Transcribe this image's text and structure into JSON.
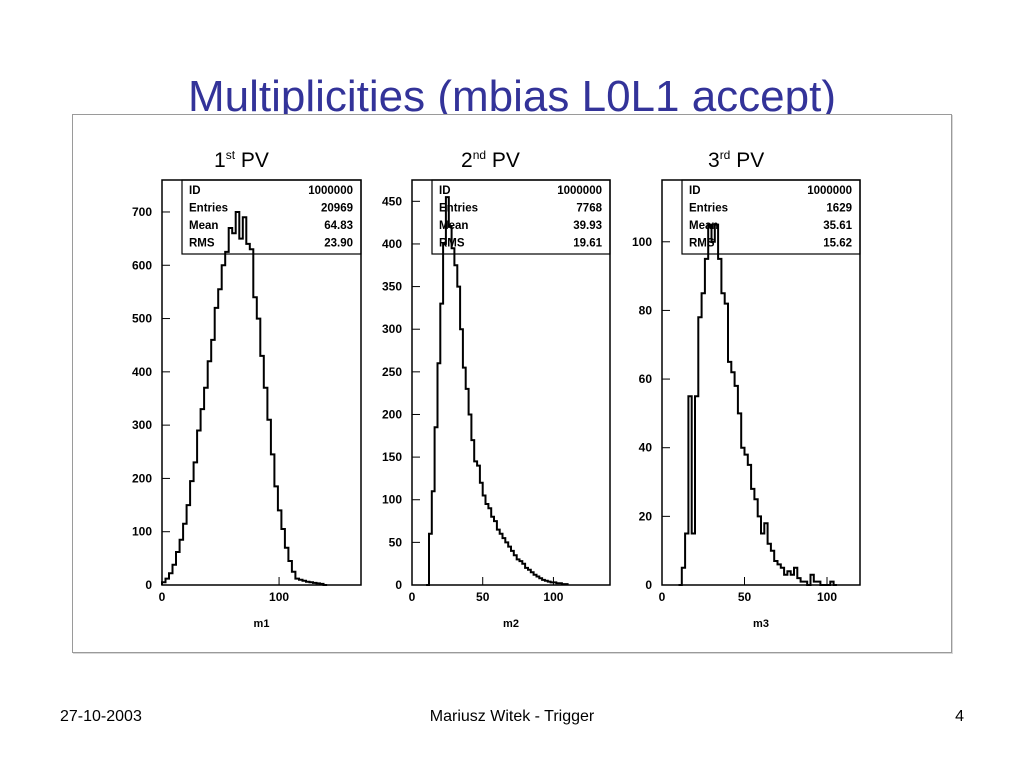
{
  "slide": {
    "title": "Multiplicities (mbias L0L1 accept)",
    "colors": {
      "title": "#333399",
      "plot": "#000000"
    }
  },
  "pv_labels": [
    {
      "num": "1",
      "sup": "st",
      "text": "PV"
    },
    {
      "num": "2",
      "sup": "nd",
      "text": "PV"
    },
    {
      "num": "3",
      "sup": "rd",
      "text": "PV"
    }
  ],
  "footer": {
    "date": "27-10-2003",
    "center": "Mariusz Witek - Trigger",
    "page": "4"
  },
  "chart_data": [
    {
      "type": "histogram",
      "xlabel": "m1",
      "xlim": [
        0,
        170
      ],
      "ylim": [
        0,
        760
      ],
      "xticks": [
        0,
        100
      ],
      "yticks": [
        0,
        100,
        200,
        300,
        400,
        500,
        600,
        700
      ],
      "stats": [
        {
          "label": "ID",
          "value": "1000000"
        },
        {
          "label": "Entries",
          "value": "20969"
        },
        {
          "label": "Mean",
          "value": "64.83"
        },
        {
          "label": "RMS",
          "value": "23.90"
        }
      ],
      "bin_width": 3,
      "x_start": 0,
      "values": [
        5,
        12,
        22,
        38,
        62,
        85,
        115,
        150,
        195,
        230,
        290,
        330,
        370,
        420,
        460,
        520,
        555,
        600,
        625,
        670,
        660,
        700,
        650,
        690,
        640,
        630,
        540,
        500,
        430,
        370,
        310,
        245,
        185,
        140,
        105,
        70,
        45,
        25,
        12,
        10,
        8,
        6,
        5,
        4,
        3,
        2,
        0
      ]
    },
    {
      "type": "histogram",
      "xlabel": "m2",
      "xlim": [
        0,
        140
      ],
      "ylim": [
        0,
        475
      ],
      "xticks": [
        0,
        50,
        100
      ],
      "yticks": [
        0,
        50,
        100,
        150,
        200,
        250,
        300,
        350,
        400,
        450
      ],
      "stats": [
        {
          "label": "ID",
          "value": "1000000"
        },
        {
          "label": "Entries",
          "value": "7768"
        },
        {
          "label": "Mean",
          "value": "39.93"
        },
        {
          "label": "RMS",
          "value": "19.61"
        }
      ],
      "bin_width": 2,
      "x_start": 10,
      "values": [
        0,
        60,
        110,
        185,
        260,
        330,
        400,
        455,
        420,
        395,
        375,
        350,
        300,
        255,
        230,
        200,
        170,
        145,
        140,
        120,
        105,
        95,
        90,
        80,
        75,
        65,
        60,
        55,
        50,
        45,
        40,
        35,
        30,
        28,
        25,
        20,
        18,
        15,
        12,
        10,
        8,
        6,
        5,
        4,
        3,
        3,
        2,
        2,
        1,
        1
      ]
    },
    {
      "type": "histogram",
      "xlabel": "m3",
      "xlim": [
        0,
        120
      ],
      "ylim": [
        0,
        118
      ],
      "xticks": [
        0,
        50,
        100
      ],
      "yticks": [
        0,
        20,
        40,
        60,
        80,
        100
      ],
      "stats": [
        {
          "label": "ID",
          "value": "1000000"
        },
        {
          "label": "Entries",
          "value": "1629"
        },
        {
          "label": "Mean",
          "value": "35.61"
        },
        {
          "label": "RMS",
          "value": "15.62"
        }
      ],
      "bin_width": 2,
      "x_start": 10,
      "values": [
        0,
        5,
        15,
        55,
        15,
        55,
        78,
        85,
        95,
        105,
        100,
        105,
        95,
        85,
        82,
        65,
        62,
        58,
        50,
        40,
        38,
        35,
        28,
        25,
        20,
        15,
        18,
        12,
        10,
        7,
        6,
        5,
        3,
        4,
        3,
        5,
        2,
        1,
        1,
        0,
        3,
        1,
        1,
        0,
        0,
        0,
        1,
        0
      ]
    }
  ]
}
